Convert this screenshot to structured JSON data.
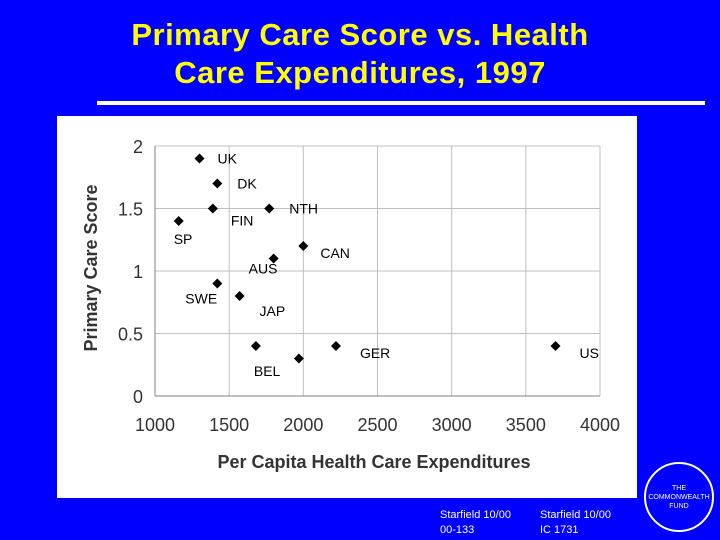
{
  "slide": {
    "title_line1": "Primary Care Score vs. Health",
    "title_line2": "Care Expenditures, 1997"
  },
  "footer": {
    "citation1_line1": "Starfield 10/00",
    "citation1_line2": "00-133",
    "citation2_line1": "Starfield 10/00",
    "citation2_line2": "IC 1731",
    "logo_line1": "THE",
    "logo_line2": "COMMONWEALTH",
    "logo_line3": "FUND"
  },
  "colors": {
    "background": "#0000FF",
    "title": "#FFFF00",
    "marker": "#000000",
    "grid": "#C0C0C0"
  },
  "chart_data": {
    "type": "scatter",
    "title": "",
    "xlabel": "Per Capita Health Care Expenditures",
    "ylabel": "Primary Care Score",
    "xlim": [
      1000,
      4000
    ],
    "ylim": [
      0,
      2
    ],
    "xticks": [
      "1000",
      "1500",
      "2000",
      "2500",
      "3000",
      "3500",
      "4000"
    ],
    "yticks": [
      "0",
      "0.5",
      "1",
      "1.5",
      "2"
    ],
    "grid": true,
    "points": [
      {
        "label": "UK",
        "x": 1300,
        "y": 1.9
      },
      {
        "label": "DK",
        "x": 1420,
        "y": 1.7
      },
      {
        "label": "NTH",
        "x": 1770,
        "y": 1.5
      },
      {
        "label": "FIN",
        "x": 1390,
        "y": 1.5
      },
      {
        "label": "SP",
        "x": 1160,
        "y": 1.4
      },
      {
        "label": "CAN",
        "x": 2000,
        "y": 1.2
      },
      {
        "label": "AUS",
        "x": 1800,
        "y": 1.1
      },
      {
        "label": "SWE",
        "x": 1420,
        "y": 0.9
      },
      {
        "label": "JAP",
        "x": 1570,
        "y": 0.8
      },
      {
        "label": "GER",
        "x": 2220,
        "y": 0.4
      },
      {
        "label": "US",
        "x": 3700,
        "y": 0.4
      },
      {
        "label": "BEL",
        "x": 1680,
        "y": 0.4
      },
      {
        "label": "",
        "x": 1970,
        "y": 0.3
      }
    ]
  }
}
